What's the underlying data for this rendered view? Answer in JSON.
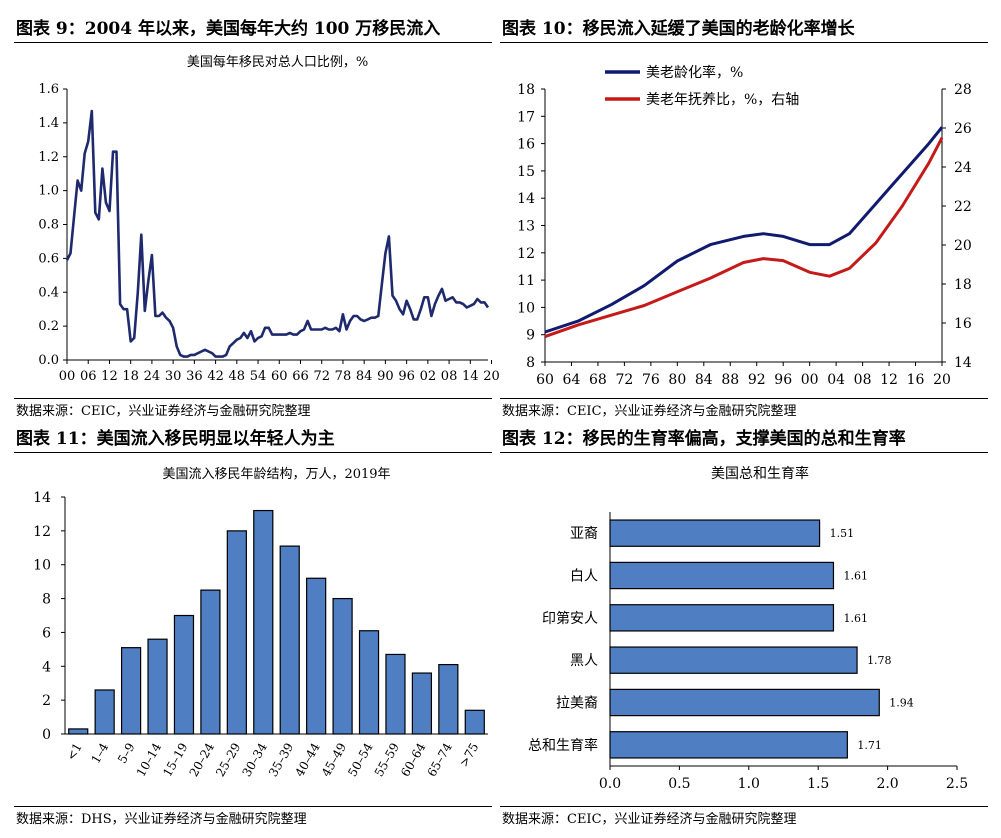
{
  "panels": [
    {
      "title": "图表 9：2004 年以来，美国每年大约 100 万移民流入",
      "source": "数据来源：CEIC，兴业证券经济与金融研究院整理"
    },
    {
      "title": "图表 10：移民流入延缓了美国的老龄化率增长",
      "source": "数据来源：CEIC，兴业证券经济与金融研究院整理"
    },
    {
      "title": "图表 11：美国流入移民明显以年轻人为主",
      "source": "数据来源：DHS，兴业证券经济与金融研究院整理"
    },
    {
      "title": "图表 12：移民的生育率偏高，支撑美国的总和生育率",
      "source": "数据来源：CEIC，兴业证券经济与金融研究院整理"
    }
  ],
  "chart_data": [
    {
      "type": "line",
      "title": "美国每年移民对总人口比例，%",
      "color": "#1f2a6e",
      "x": [
        1900,
        1901,
        1902,
        1903,
        1904,
        1905,
        1906,
        1907,
        1908,
        1909,
        1910,
        1911,
        1912,
        1913,
        1914,
        1915,
        1916,
        1917,
        1918,
        1919,
        1920,
        1921,
        1922,
        1923,
        1924,
        1925,
        1926,
        1927,
        1928,
        1929,
        1930,
        1931,
        1932,
        1933,
        1934,
        1935,
        1936,
        1937,
        1938,
        1939,
        1940,
        1941,
        1942,
        1943,
        1944,
        1945,
        1946,
        1947,
        1948,
        1949,
        1950,
        1951,
        1952,
        1953,
        1954,
        1955,
        1956,
        1957,
        1958,
        1959,
        1960,
        1961,
        1962,
        1963,
        1964,
        1965,
        1966,
        1967,
        1968,
        1969,
        1970,
        1971,
        1972,
        1973,
        1974,
        1975,
        1976,
        1977,
        1978,
        1979,
        1980,
        1981,
        1982,
        1983,
        1984,
        1985,
        1986,
        1987,
        1988,
        1989,
        1990,
        1991,
        1992,
        1993,
        1994,
        1995,
        1996,
        1997,
        1998,
        1999,
        2000,
        2001,
        2002,
        2003,
        2004,
        2005,
        2006,
        2007,
        2008,
        2009,
        2010,
        2011,
        2012,
        2013,
        2014,
        2015,
        2016,
        2017,
        2018,
        2019
      ],
      "y": [
        0.59,
        0.63,
        0.85,
        1.06,
        1.0,
        1.22,
        1.29,
        1.47,
        0.87,
        0.83,
        1.13,
        0.93,
        0.88,
        1.23,
        1.23,
        0.33,
        0.3,
        0.3,
        0.11,
        0.13,
        0.4,
        0.74,
        0.29,
        0.47,
        0.62,
        0.26,
        0.26,
        0.28,
        0.25,
        0.23,
        0.19,
        0.08,
        0.03,
        0.02,
        0.02,
        0.03,
        0.03,
        0.04,
        0.05,
        0.06,
        0.05,
        0.04,
        0.02,
        0.02,
        0.02,
        0.03,
        0.08,
        0.1,
        0.12,
        0.13,
        0.16,
        0.13,
        0.17,
        0.11,
        0.13,
        0.14,
        0.19,
        0.19,
        0.15,
        0.15,
        0.15,
        0.15,
        0.15,
        0.16,
        0.15,
        0.15,
        0.17,
        0.18,
        0.23,
        0.18,
        0.18,
        0.18,
        0.18,
        0.19,
        0.18,
        0.18,
        0.19,
        0.17,
        0.27,
        0.18,
        0.23,
        0.26,
        0.26,
        0.24,
        0.23,
        0.24,
        0.25,
        0.25,
        0.26,
        0.45,
        0.63,
        0.73,
        0.38,
        0.35,
        0.3,
        0.27,
        0.35,
        0.3,
        0.24,
        0.24,
        0.3,
        0.37,
        0.37,
        0.26,
        0.33,
        0.38,
        0.42,
        0.35,
        0.36,
        0.37,
        0.34,
        0.34,
        0.33,
        0.31,
        0.32,
        0.33,
        0.36,
        0.34,
        0.34,
        0.31
      ],
      "xticks": [
        "00",
        "06",
        "12",
        "18",
        "24",
        "30",
        "36",
        "42",
        "48",
        "54",
        "60",
        "66",
        "72",
        "78",
        "84",
        "90",
        "96",
        "02",
        "08",
        "14",
        "20"
      ],
      "yticks": [
        "0.0",
        "0.2",
        "0.4",
        "0.6",
        "0.8",
        "1.0",
        "1.2",
        "1.4",
        "1.6"
      ],
      "ylim": [
        0,
        1.6
      ]
    },
    {
      "type": "line",
      "series": [
        {
          "name": "美老龄化率，%",
          "axis": "left",
          "color": "#101a6e",
          "x": [
            1960,
            1965,
            1970,
            1975,
            1980,
            1985,
            1990,
            1993,
            1996,
            2000,
            2003,
            2006,
            2010,
            2014,
            2018,
            2020
          ],
          "y": [
            9.1,
            9.5,
            10.1,
            10.8,
            11.7,
            12.3,
            12.6,
            12.7,
            12.6,
            12.3,
            12.3,
            12.7,
            13.8,
            14.9,
            16.0,
            16.6
          ]
        },
        {
          "name": "美老年抚养比，%，右轴",
          "axis": "right",
          "color": "#c41a1a",
          "x": [
            1960,
            1965,
            1970,
            1975,
            1980,
            1985,
            1990,
            1993,
            1996,
            2000,
            2003,
            2006,
            2010,
            2014,
            2018,
            2020
          ],
          "y": [
            15.3,
            15.9,
            16.4,
            16.9,
            17.6,
            18.3,
            19.1,
            19.3,
            19.2,
            18.6,
            18.4,
            18.8,
            20.1,
            22.0,
            24.2,
            25.5
          ]
        }
      ],
      "xticks": [
        "60",
        "64",
        "68",
        "72",
        "76",
        "80",
        "84",
        "88",
        "92",
        "96",
        "00",
        "04",
        "08",
        "12",
        "16",
        "20"
      ],
      "ylim": [
        8,
        18
      ],
      "yticks": [
        "8",
        "9",
        "10",
        "11",
        "12",
        "13",
        "14",
        "15",
        "16",
        "17",
        "18"
      ],
      "y2lim": [
        14,
        28
      ],
      "y2ticks": [
        "14",
        "16",
        "18",
        "20",
        "22",
        "24",
        "26",
        "28"
      ]
    },
    {
      "type": "bar",
      "title": "美国流入移民年龄结构，万人，2019年",
      "color": "#4f7ec2",
      "categories": [
        "<1",
        "1–4",
        "5–9",
        "10–14",
        "15–19",
        "20–24",
        "25–29",
        "30–34",
        "35–39",
        "40–44",
        "45–49",
        "50–54",
        "55–59",
        "60–64",
        "65–74",
        ">75"
      ],
      "values": [
        0.3,
        2.6,
        5.1,
        5.6,
        7.0,
        8.5,
        12.0,
        13.2,
        11.1,
        9.2,
        8.0,
        6.1,
        4.7,
        3.6,
        4.1,
        1.4
      ],
      "yticks": [
        "0",
        "2",
        "4",
        "6",
        "8",
        "10",
        "12",
        "14"
      ],
      "ylim": [
        0,
        14
      ]
    },
    {
      "type": "bar",
      "orientation": "horizontal",
      "title": "美国总和生育率",
      "color": "#4f7ec2",
      "categories": [
        "亚裔",
        "白人",
        "印第安人",
        "黑人",
        "拉美裔",
        "总和生育率"
      ],
      "values": [
        1.51,
        1.61,
        1.61,
        1.78,
        1.94,
        1.71
      ],
      "labels": [
        "1.51",
        "1.61",
        "1.61",
        "1.78",
        "1.94",
        "1.71"
      ],
      "xticks": [
        "0.0",
        "0.5",
        "1.0",
        "1.5",
        "2.0",
        "2.5"
      ],
      "xlim": [
        0,
        2.5
      ]
    }
  ]
}
